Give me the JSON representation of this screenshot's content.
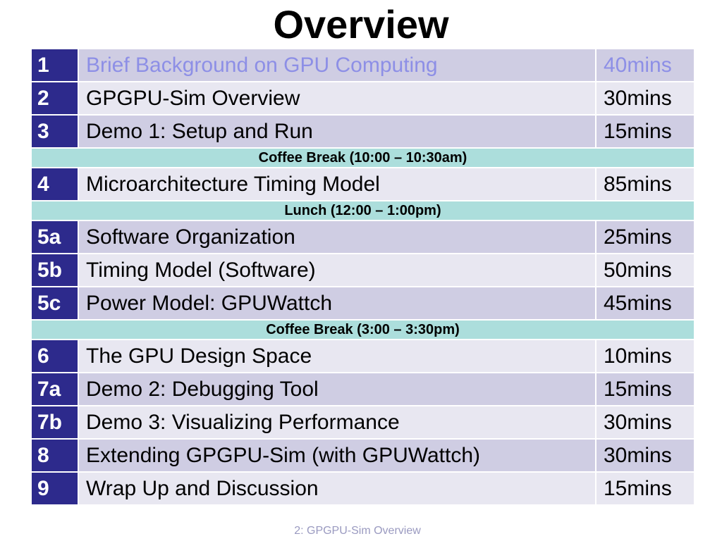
{
  "slide": {
    "title": "Overview",
    "footer": "2: GPGPU-Sim Overview"
  },
  "colors": {
    "number_cell": "#2d2a8c",
    "row_odd": "#cfcde3",
    "row_even": "#e8e7f1",
    "break_row": "#acdedc",
    "current_text": "#8d8fe6"
  },
  "agenda": [
    {
      "kind": "session",
      "num": "1",
      "topic": "Brief Background on GPU Computing",
      "duration": "40mins",
      "current": true
    },
    {
      "kind": "session",
      "num": "2",
      "topic": "GPGPU-Sim Overview",
      "duration": "30mins"
    },
    {
      "kind": "session",
      "num": "3",
      "topic": "Demo 1: Setup and Run",
      "duration": "15mins"
    },
    {
      "kind": "break",
      "label": "Coffee Break (10:00 – 10:30am)"
    },
    {
      "kind": "session",
      "num": "4",
      "topic": "Microarchitecture Timing Model",
      "duration": "85mins"
    },
    {
      "kind": "break",
      "label": "Lunch (12:00 – 1:00pm)"
    },
    {
      "kind": "session",
      "num": "5a",
      "topic": "Software Organization",
      "duration": "25mins"
    },
    {
      "kind": "session",
      "num": "5b",
      "topic": "Timing Model (Software)",
      "duration": "50mins"
    },
    {
      "kind": "session",
      "num": "5c",
      "topic": "Power Model: GPUWattch",
      "duration": "45mins"
    },
    {
      "kind": "break",
      "label": "Coffee Break (3:00 – 3:30pm)"
    },
    {
      "kind": "session",
      "num": "6",
      "topic": "The GPU Design Space",
      "duration": "10mins"
    },
    {
      "kind": "session",
      "num": "7a",
      "topic": "Demo 2: Debugging Tool",
      "duration": "15mins"
    },
    {
      "kind": "session",
      "num": "7b",
      "topic": "Demo 3: Visualizing Performance",
      "duration": "30mins"
    },
    {
      "kind": "session",
      "num": "8",
      "topic": "Extending GPGPU-Sim (with GPUWattch)",
      "duration": "30mins"
    },
    {
      "kind": "session",
      "num": "9",
      "topic": "Wrap Up and Discussion",
      "duration": "15mins"
    }
  ]
}
